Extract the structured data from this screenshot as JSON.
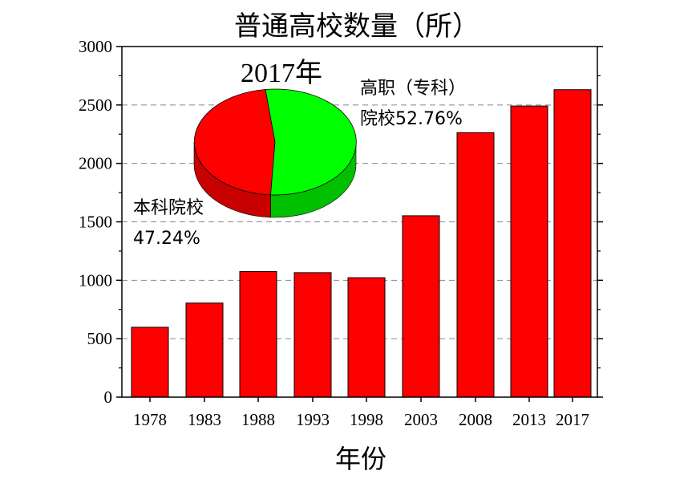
{
  "chart_data": [
    {
      "type": "bar",
      "title": "普通高校数量（所）",
      "xlabel": "年份",
      "ylabel": "",
      "categories": [
        "1978",
        "1983",
        "1988",
        "1993",
        "1998",
        "2003",
        "2008",
        "2013",
        "2017"
      ],
      "values": [
        598,
        805,
        1075,
        1065,
        1022,
        1552,
        2263,
        2491,
        2631
      ],
      "ylim": [
        0,
        3000
      ],
      "yticks": [
        "0",
        "500",
        "1000",
        "1500",
        "2000",
        "2500",
        "3000"
      ],
      "grid": "horizontal dashed",
      "colors": {
        "bar": "#ff0000",
        "grid": "#888888"
      }
    },
    {
      "type": "pie",
      "title": "2017年",
      "slices": [
        {
          "label": "本科院校",
          "value_label": "47.24%",
          "value": 47.24,
          "color": "#ff0000"
        },
        {
          "label": "高职（专科）",
          "label2": "院校52.76%",
          "value": 52.76,
          "color": "#00ff00"
        }
      ]
    }
  ]
}
